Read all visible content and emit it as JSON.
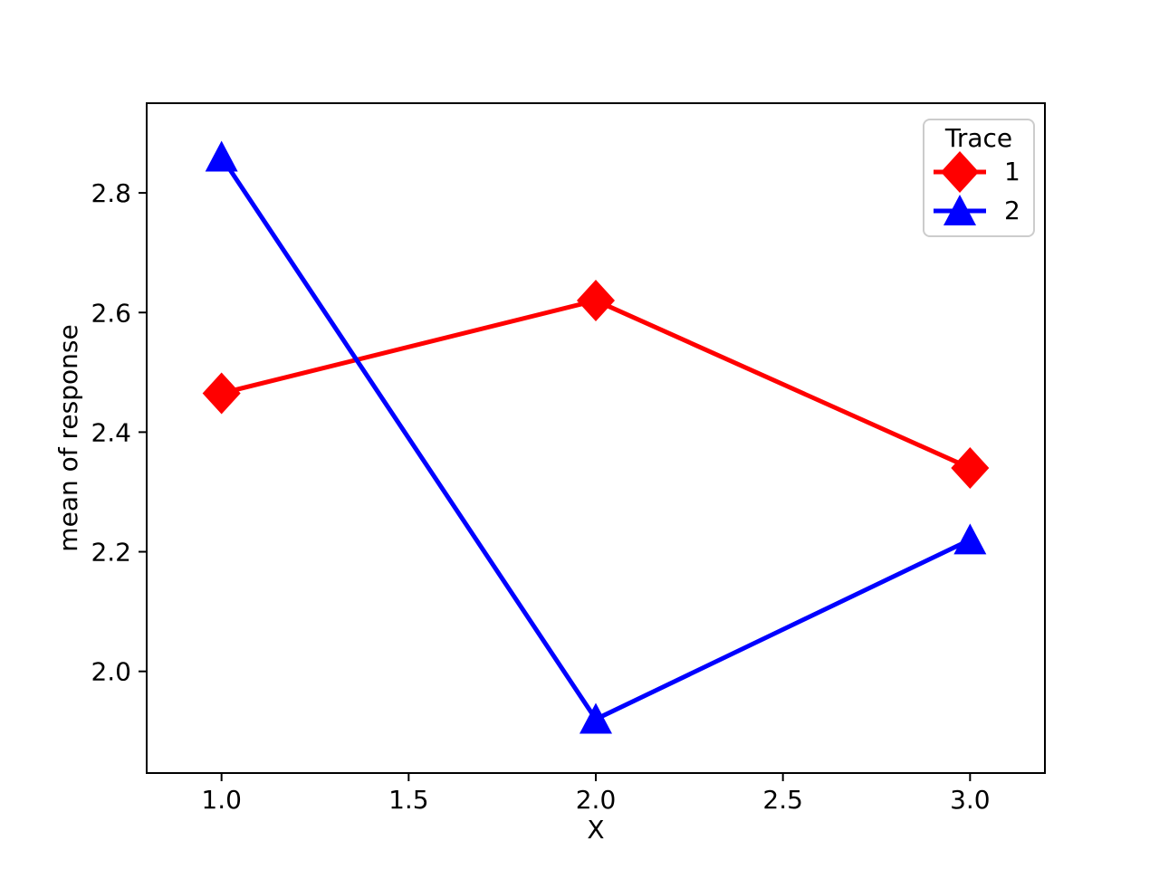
{
  "chart_data": {
    "type": "line",
    "title": "",
    "xlabel": "X",
    "ylabel": "mean of response",
    "x": [
      1,
      2,
      3
    ],
    "series": [
      {
        "name": "1",
        "color": "#ff0000",
        "marker": "diamond",
        "values": [
          2.465,
          2.62,
          2.34
        ]
      },
      {
        "name": "2",
        "color": "#0000ff",
        "marker": "triangle-up",
        "values": [
          2.86,
          1.92,
          2.22
        ]
      }
    ],
    "xlim": [
      0.8,
      3.2
    ],
    "ylim": [
      1.83,
      2.95
    ],
    "xticks": {
      "values": [
        1.0,
        1.5,
        2.0,
        2.5,
        3.0
      ],
      "labels": [
        "1.0",
        "1.5",
        "2.0",
        "2.5",
        "3.0"
      ]
    },
    "yticks": {
      "values": [
        2.0,
        2.2,
        2.4,
        2.6,
        2.8
      ],
      "labels": [
        "2.0",
        "2.2",
        "2.4",
        "2.6",
        "2.8"
      ]
    },
    "grid": false,
    "legend": {
      "title": "Trace",
      "position": "upper right",
      "entries": [
        "1",
        "2"
      ]
    },
    "axis_color": "#000000",
    "background_color": "#ffffff"
  }
}
